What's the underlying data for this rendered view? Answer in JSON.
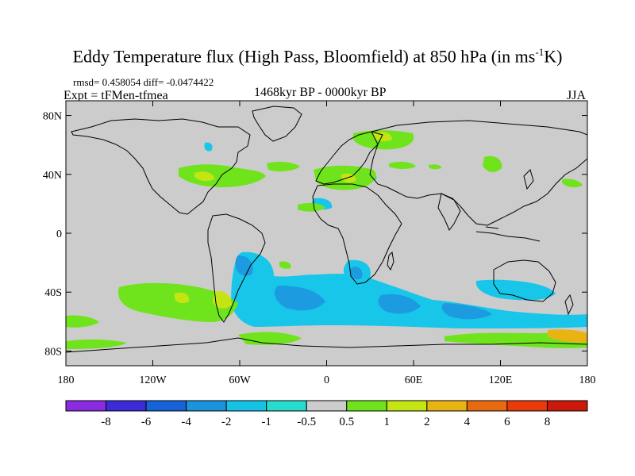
{
  "title_text": "Eddy Temperature flux (High Pass, Bloomfield) at 850 hPa (in ms",
  "title_sup": "-1",
  "title_end": "K)",
  "stats_label": "rmsd= 0.458054  diff= -0.0474422",
  "expt_label": "Expt = tFMen-tfmea",
  "period_label": "1468kyr BP - 0000kyr BP",
  "season_label": "JJA",
  "chart_data": {
    "type": "filled contour map",
    "variable": "Eddy temperature flux anomaly",
    "units": "ms-1K",
    "level": "850 hPa",
    "x_ticks": [
      "180",
      "120W",
      "60W",
      "0",
      "60E",
      "120E",
      "180"
    ],
    "y_ticks": [
      "80N",
      "40N",
      "0",
      "40S",
      "80S"
    ],
    "colorbar_labels": [
      "-8",
      "-6",
      "-4",
      "-2",
      "-1",
      "-0.5",
      "0.5",
      "1",
      "2",
      "4",
      "6",
      "8"
    ],
    "colors": [
      "#8a2be2",
      "#3d2ad8",
      "#1662d8",
      "#1c93dd",
      "#16c3e6",
      "#26dccc",
      "#cccccc",
      "#6fe41c",
      "#c4e414",
      "#e8b414",
      "#e86a10",
      "#e83a0a",
      "#cc1a0a"
    ]
  }
}
